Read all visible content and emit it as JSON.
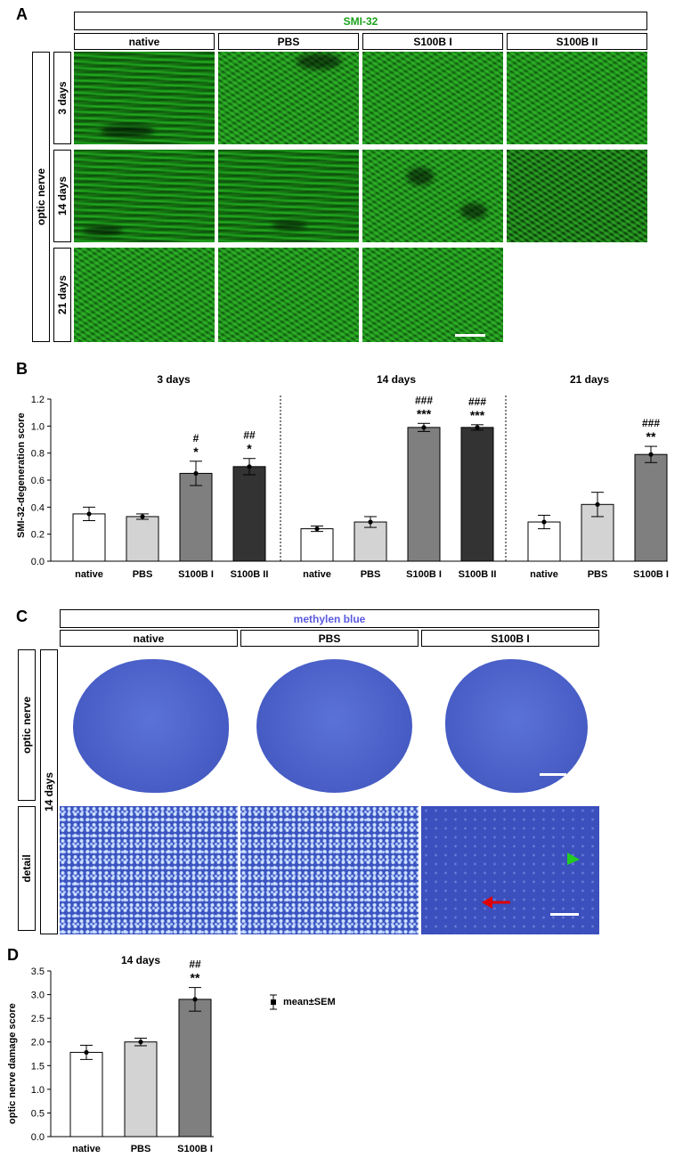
{
  "panelA": {
    "letter": "A",
    "stain": "SMI-32",
    "stain_color": "#1aa31a",
    "groups": [
      "native",
      "PBS",
      "S100B I",
      "S100B II"
    ],
    "tissue": "optic nerve",
    "timepoints": [
      "3 days",
      "14 days",
      "21 days"
    ]
  },
  "panelB": {
    "letter": "B",
    "ylabel": "SMI-32-degeneration score",
    "yticks": [
      "0.0",
      "0.2",
      "0.4",
      "0.6",
      "0.8",
      "1.0",
      "1.2"
    ],
    "sections": [
      "3 days",
      "14 days",
      "21 days"
    ],
    "xlabels": [
      "native",
      "PBS",
      "S100B I",
      "S100B II",
      "native",
      "PBS",
      "S100B I",
      "S100B II",
      "native",
      "PBS",
      "S100B I"
    ]
  },
  "panelC": {
    "letter": "C",
    "stain": "methylen blue",
    "stain_color": "#5a5ae0",
    "groups": [
      "native",
      "PBS",
      "S100B I"
    ],
    "tissue": "optic nerve",
    "detail": "detail",
    "timepoint": "14 days"
  },
  "panelD": {
    "letter": "D",
    "title": "14 days",
    "ylabel": "optic nerve damage score",
    "yticks": [
      "0.0",
      "0.5",
      "1.0",
      "1.5",
      "2.0",
      "2.5",
      "3.0",
      "3.5"
    ],
    "xlabels": [
      "native",
      "PBS",
      "S100B I"
    ],
    "legend": "mean±SEM"
  },
  "chart_data": [
    {
      "type": "bar",
      "ylabel": "SMI-32-degeneration score",
      "ylim": [
        0,
        1.2
      ],
      "bar_colors": [
        "#ffffff",
        "#d3d3d3",
        "#7f7f7f",
        "#333333"
      ],
      "groups": [
        {
          "title": "3 days",
          "categories": [
            "native",
            "PBS",
            "S100B I",
            "S100B II"
          ],
          "values": [
            0.35,
            0.33,
            0.65,
            0.7
          ],
          "sem": [
            0.05,
            0.02,
            0.09,
            0.06
          ],
          "annotations": [
            "",
            "",
            "#\n*",
            "##\n*"
          ]
        },
        {
          "title": "14 days",
          "categories": [
            "native",
            "PBS",
            "S100B I",
            "S100B II"
          ],
          "values": [
            0.24,
            0.29,
            0.99,
            0.99
          ],
          "sem": [
            0.02,
            0.04,
            0.03,
            0.02
          ],
          "annotations": [
            "",
            "",
            "###\n***",
            "###\n***"
          ]
        },
        {
          "title": "21 days",
          "categories": [
            "native",
            "PBS",
            "S100B I"
          ],
          "values": [
            0.29,
            0.42,
            0.79
          ],
          "sem": [
            0.05,
            0.09,
            0.06
          ],
          "annotations": [
            "",
            "",
            "###\n**"
          ]
        }
      ]
    },
    {
      "type": "bar",
      "title": "14 days",
      "ylabel": "optic nerve damage score",
      "ylim": [
        0,
        3.5
      ],
      "categories": [
        "native",
        "PBS",
        "S100B I"
      ],
      "values": [
        1.78,
        2.0,
        2.9
      ],
      "sem": [
        0.15,
        0.08,
        0.25
      ],
      "bar_colors": [
        "#ffffff",
        "#d3d3d3",
        "#7f7f7f"
      ],
      "annotations": [
        "",
        "",
        "##\n**"
      ],
      "legend": "mean±SEM"
    }
  ]
}
